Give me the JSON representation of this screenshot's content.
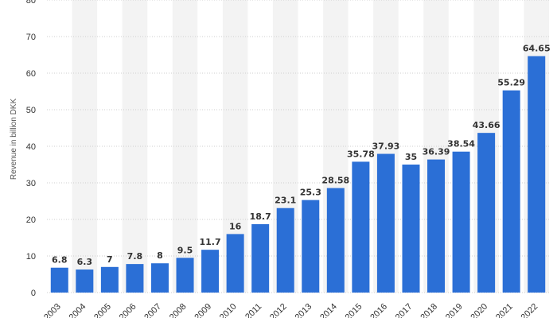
{
  "chart_data": {
    "type": "bar",
    "title": "",
    "xlabel": "",
    "ylabel": "Revenue in billion DKK",
    "categories": [
      "2003",
      "2004",
      "2005",
      "2006",
      "2007",
      "2008",
      "2009",
      "2010",
      "2011",
      "2012",
      "2013",
      "2014",
      "2015",
      "2016",
      "2017",
      "2018",
      "2019",
      "2020",
      "2021",
      "2022"
    ],
    "values": [
      6.8,
      6.3,
      7,
      7.8,
      8,
      9.5,
      11.7,
      16,
      18.7,
      23.1,
      25.3,
      28.58,
      35.78,
      37.93,
      35,
      36.39,
      38.54,
      43.66,
      55.29,
      64.65
    ],
    "value_labels": [
      "6.8",
      "6.3",
      "7",
      "7.8",
      "8",
      "9.5",
      "11.7",
      "16",
      "18.7",
      "23.1",
      "25.3",
      "28.58",
      "35.78",
      "37.93",
      "35",
      "36.39",
      "38.54",
      "43.66",
      "55.29",
      "64.65"
    ],
    "y_ticks": [
      "0",
      "10",
      "20",
      "30",
      "40",
      "50",
      "60",
      "70",
      "80"
    ],
    "ylim": [
      0,
      80
    ],
    "grid": "horizontal dotted",
    "bar_color": "#2b6fd6",
    "band_color": "#f3f3f3",
    "grid_color": "#cfcfcf"
  }
}
